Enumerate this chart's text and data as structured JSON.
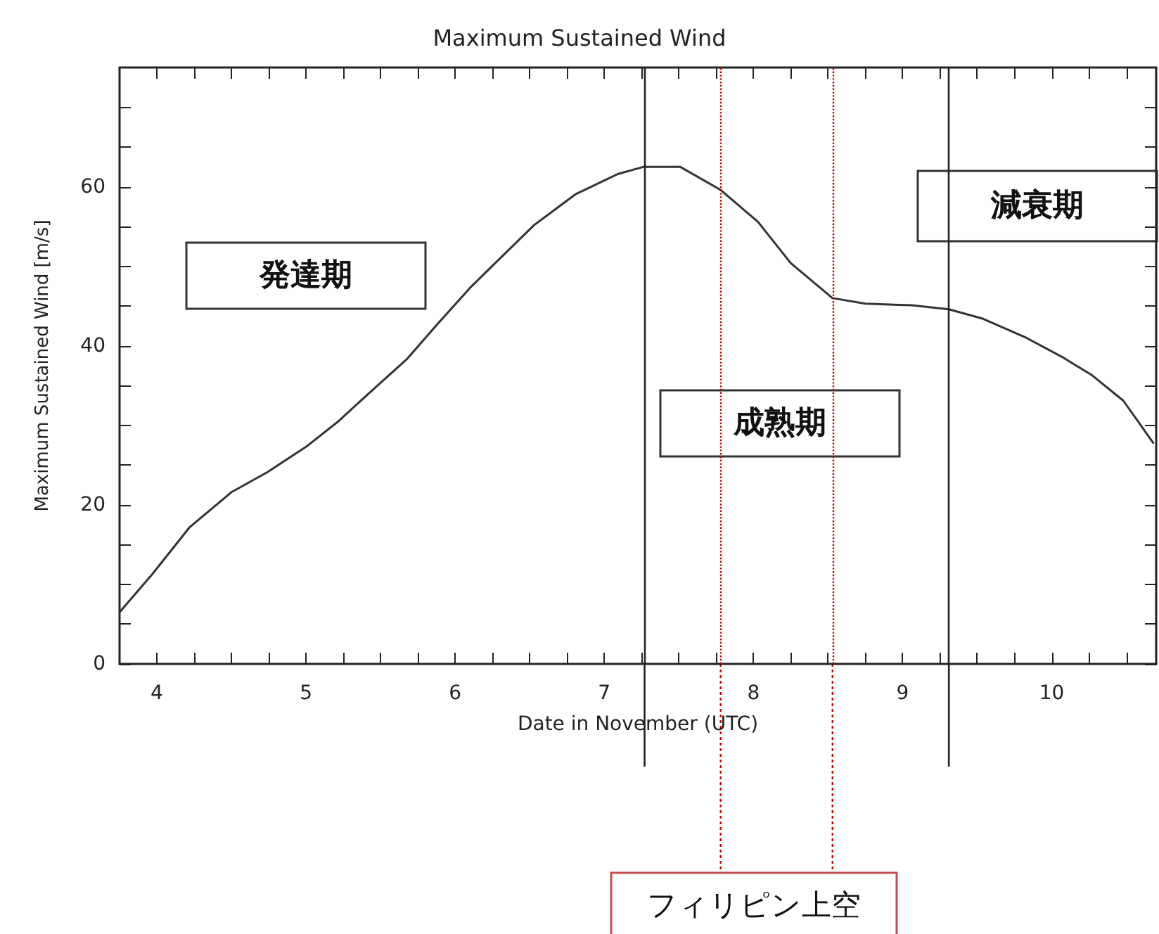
{
  "chart_data": {
    "type": "line",
    "title": "Maximum Sustained Wind",
    "xlabel": "Date in November (UTC)",
    "ylabel": "Maximum Sustained Wind [m/s]",
    "x": [
      3.75,
      3.97,
      4.22,
      4.5,
      4.74,
      5.0,
      5.21,
      5.42,
      5.68,
      5.87,
      6.1,
      6.29,
      6.53,
      6.81,
      7.09,
      7.26,
      7.51,
      7.78,
      8.03,
      8.25,
      8.53,
      8.75,
      9.06,
      9.31,
      9.54,
      9.82,
      10.07,
      10.27,
      10.48,
      10.68
    ],
    "series": [
      {
        "color": "#333333",
        "values": [
          6.5,
          11.3,
          17.2,
          21.6,
          24.1,
          27.3,
          30.4,
          34,
          38.4,
          42.5,
          47.3,
          50.8,
          55.2,
          59.1,
          61.6,
          62.5,
          62.5,
          59.6,
          55.6,
          50.4,
          46,
          45.3,
          45.1,
          44.6,
          43.4,
          41.1,
          38.6,
          36.3,
          33.1,
          27.8
        ]
      }
    ],
    "xlim": [
      3.75,
      10.7
    ],
    "xticks": [
      4,
      {
        "value": 4.25,
        "label": null
      },
      {
        "value": 4.5,
        "label": null
      },
      {
        "value": 4.75,
        "label": null
      },
      5,
      {
        "value": 5.25,
        "label": null
      },
      {
        "value": 5.5,
        "label": null
      },
      {
        "value": 5.75,
        "label": null
      },
      6,
      {
        "value": 6.25,
        "label": null
      },
      {
        "value": 6.5,
        "label": null
      },
      {
        "value": 6.75,
        "label": null
      },
      7,
      {
        "value": 7.25,
        "label": null
      },
      {
        "value": 7.5,
        "label": null
      },
      {
        "value": 7.75,
        "label": null
      },
      8,
      {
        "value": 8.25,
        "label": null
      },
      {
        "value": 8.5,
        "label": null
      },
      {
        "value": 8.75,
        "label": null
      },
      9,
      {
        "value": 9.25,
        "label": null
      },
      {
        "value": 9.5,
        "label": null
      },
      {
        "value": 9.75,
        "label": null
      },
      10,
      {
        "value": 10.25,
        "label": null
      },
      {
        "value": 10.5,
        "label": null
      }
    ],
    "ylim": [
      0,
      75
    ],
    "yticks": [
      0,
      {
        "value": 5,
        "label": null
      },
      {
        "value": 10,
        "label": null
      },
      {
        "value": 15,
        "label": null
      },
      20,
      {
        "value": 25,
        "label": null
      },
      {
        "value": 30,
        "label": null
      },
      {
        "value": 35,
        "label": null
      },
      40,
      {
        "value": 45,
        "label": null
      },
      {
        "value": 50,
        "label": null
      },
      {
        "value": 55,
        "label": null
      },
      60,
      {
        "value": 65,
        "label": null
      },
      {
        "value": 70,
        "label": null
      }
    ],
    "ref_lines": [
      {
        "axis": "x",
        "value": 7.27,
        "color": "#222222",
        "line_style": "solid"
      },
      {
        "axis": "x",
        "value": 9.31,
        "color": "#222222",
        "line_style": "solid"
      },
      {
        "axis": "x",
        "value": 7.78,
        "color": "#cc0000",
        "line_style": "dotted"
      },
      {
        "axis": "x",
        "value": 8.53,
        "color": "#cc0000",
        "line_style": "dotted"
      }
    ],
    "annotations": [
      "発達期",
      "成熟期",
      "減衰期",
      "フィリピン上空"
    ],
    "grid": false,
    "marker": "none",
    "line_style": "solid"
  }
}
